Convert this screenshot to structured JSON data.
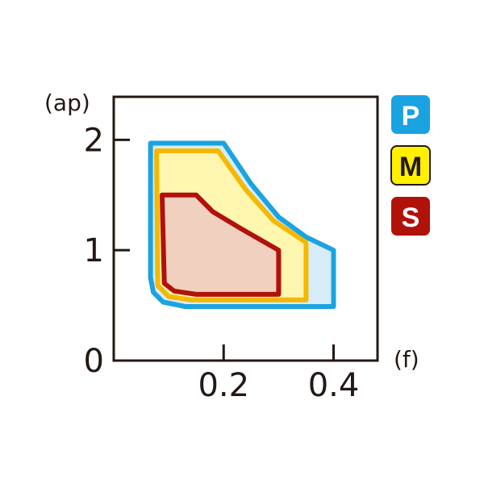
{
  "chart_data": {
    "type": "area",
    "xlabel": "(f)",
    "ylabel": "(ap)",
    "xlim": [
      0,
      0.48
    ],
    "ylim": [
      0,
      2.39
    ],
    "x_ticks": [
      "0.2",
      "0.4"
    ],
    "x_tick_values": [
      0.2,
      0.4
    ],
    "y_ticks": [
      "0",
      "1",
      "2"
    ],
    "y_tick_values": [
      0,
      1,
      2
    ],
    "grid": false,
    "legend_position": "right",
    "series": [
      {
        "name": "P",
        "stroke": "#1aa3e0",
        "fill": "#d6ecf8",
        "legend_text_color": "#ffffff",
        "boundary": [
          [
            0.067,
            1.97
          ],
          [
            0.2,
            1.97
          ],
          [
            0.25,
            1.6
          ],
          [
            0.3,
            1.3
          ],
          [
            0.35,
            1.12
          ],
          [
            0.4,
            1.0
          ],
          [
            0.4,
            0.49
          ],
          [
            0.13,
            0.49
          ],
          [
            0.09,
            0.53
          ],
          [
            0.072,
            0.62
          ],
          [
            0.067,
            0.75
          ]
        ]
      },
      {
        "name": "M",
        "stroke": "#f5b800",
        "fill": "#fff6b0",
        "legend_text_color": "#231815",
        "legend_fill": "#fff000",
        "boundary": [
          [
            0.078,
            1.9
          ],
          [
            0.19,
            1.9
          ],
          [
            0.24,
            1.55
          ],
          [
            0.29,
            1.27
          ],
          [
            0.35,
            1.07
          ],
          [
            0.35,
            0.55
          ],
          [
            0.14,
            0.55
          ],
          [
            0.1,
            0.58
          ],
          [
            0.08,
            0.68
          ]
        ]
      },
      {
        "name": "S",
        "stroke": "#b0120a",
        "fill": "#f0d0bf",
        "legend_text_color": "#ffffff",
        "boundary": [
          [
            0.088,
            1.5
          ],
          [
            0.15,
            1.5
          ],
          [
            0.18,
            1.35
          ],
          [
            0.23,
            1.2
          ],
          [
            0.3,
            1.0
          ],
          [
            0.3,
            0.6
          ],
          [
            0.15,
            0.6
          ],
          [
            0.11,
            0.63
          ],
          [
            0.092,
            0.7
          ]
        ]
      }
    ]
  }
}
